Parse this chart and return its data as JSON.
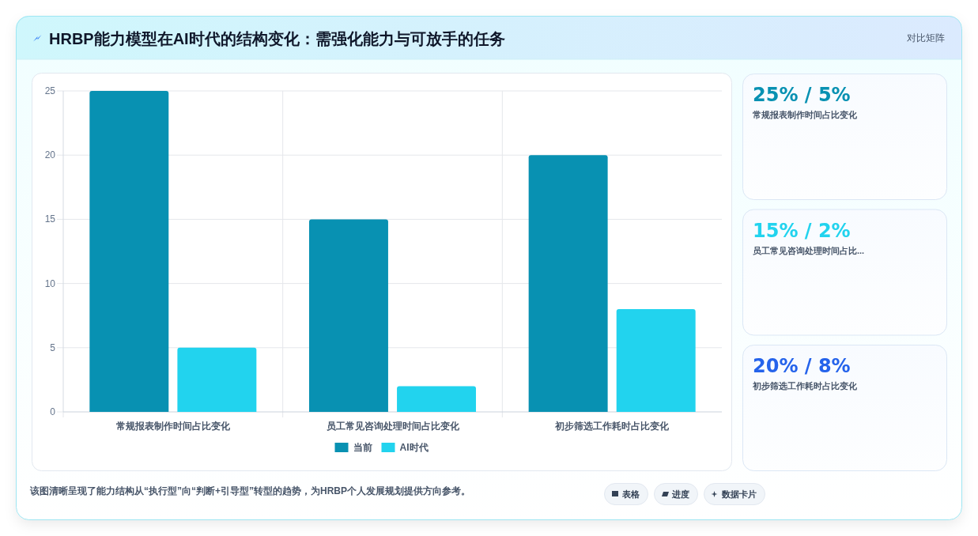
{
  "chart_data": [
    {
      "type": "bar",
      "title": "HRBP能力模型在AI时代的结构变化：需强化能力与可放手的任务",
      "categories": [
        "常规报表制作时间占比变化",
        "员工常见咨询处理时间占比变化",
        "初步筛选工作耗时占比变化"
      ],
      "series": [
        {
          "name": "当前",
          "color": "#0891b2",
          "values": [
            25,
            15,
            20
          ]
        },
        {
          "name": "AI时代",
          "color": "#22d3ee",
          "values": [
            5,
            2,
            8
          ]
        }
      ],
      "ylim": [
        0,
        25
      ],
      "yticks": [
        0,
        5,
        10,
        15,
        20,
        25
      ],
      "grid": true,
      "legend": "bottom",
      "annotations": [
        "该图清晰呈现了能力结构从“执行型”向“判断+引导型”转型的趋势，为HRBP个人发展规划提供方向参考。",
        "表格",
        "进度",
        "数据卡片"
      ]
    },
    {
      "type": "other",
      "title": "25% / 5%",
      "subtitle": "常规报表制作时间占比变化",
      "color": "#0891b2",
      "annotations": [
        "对比矩阵"
      ]
    },
    {
      "type": "other",
      "title": "15% / 2%",
      "subtitle": "员工常见咨询处理时间占比...",
      "color": "#22d3ee"
    },
    {
      "type": "other",
      "title": "20% / 8%",
      "subtitle": "初步筛选工作耗时占比变化",
      "color": "#2563eb"
    }
  ]
}
